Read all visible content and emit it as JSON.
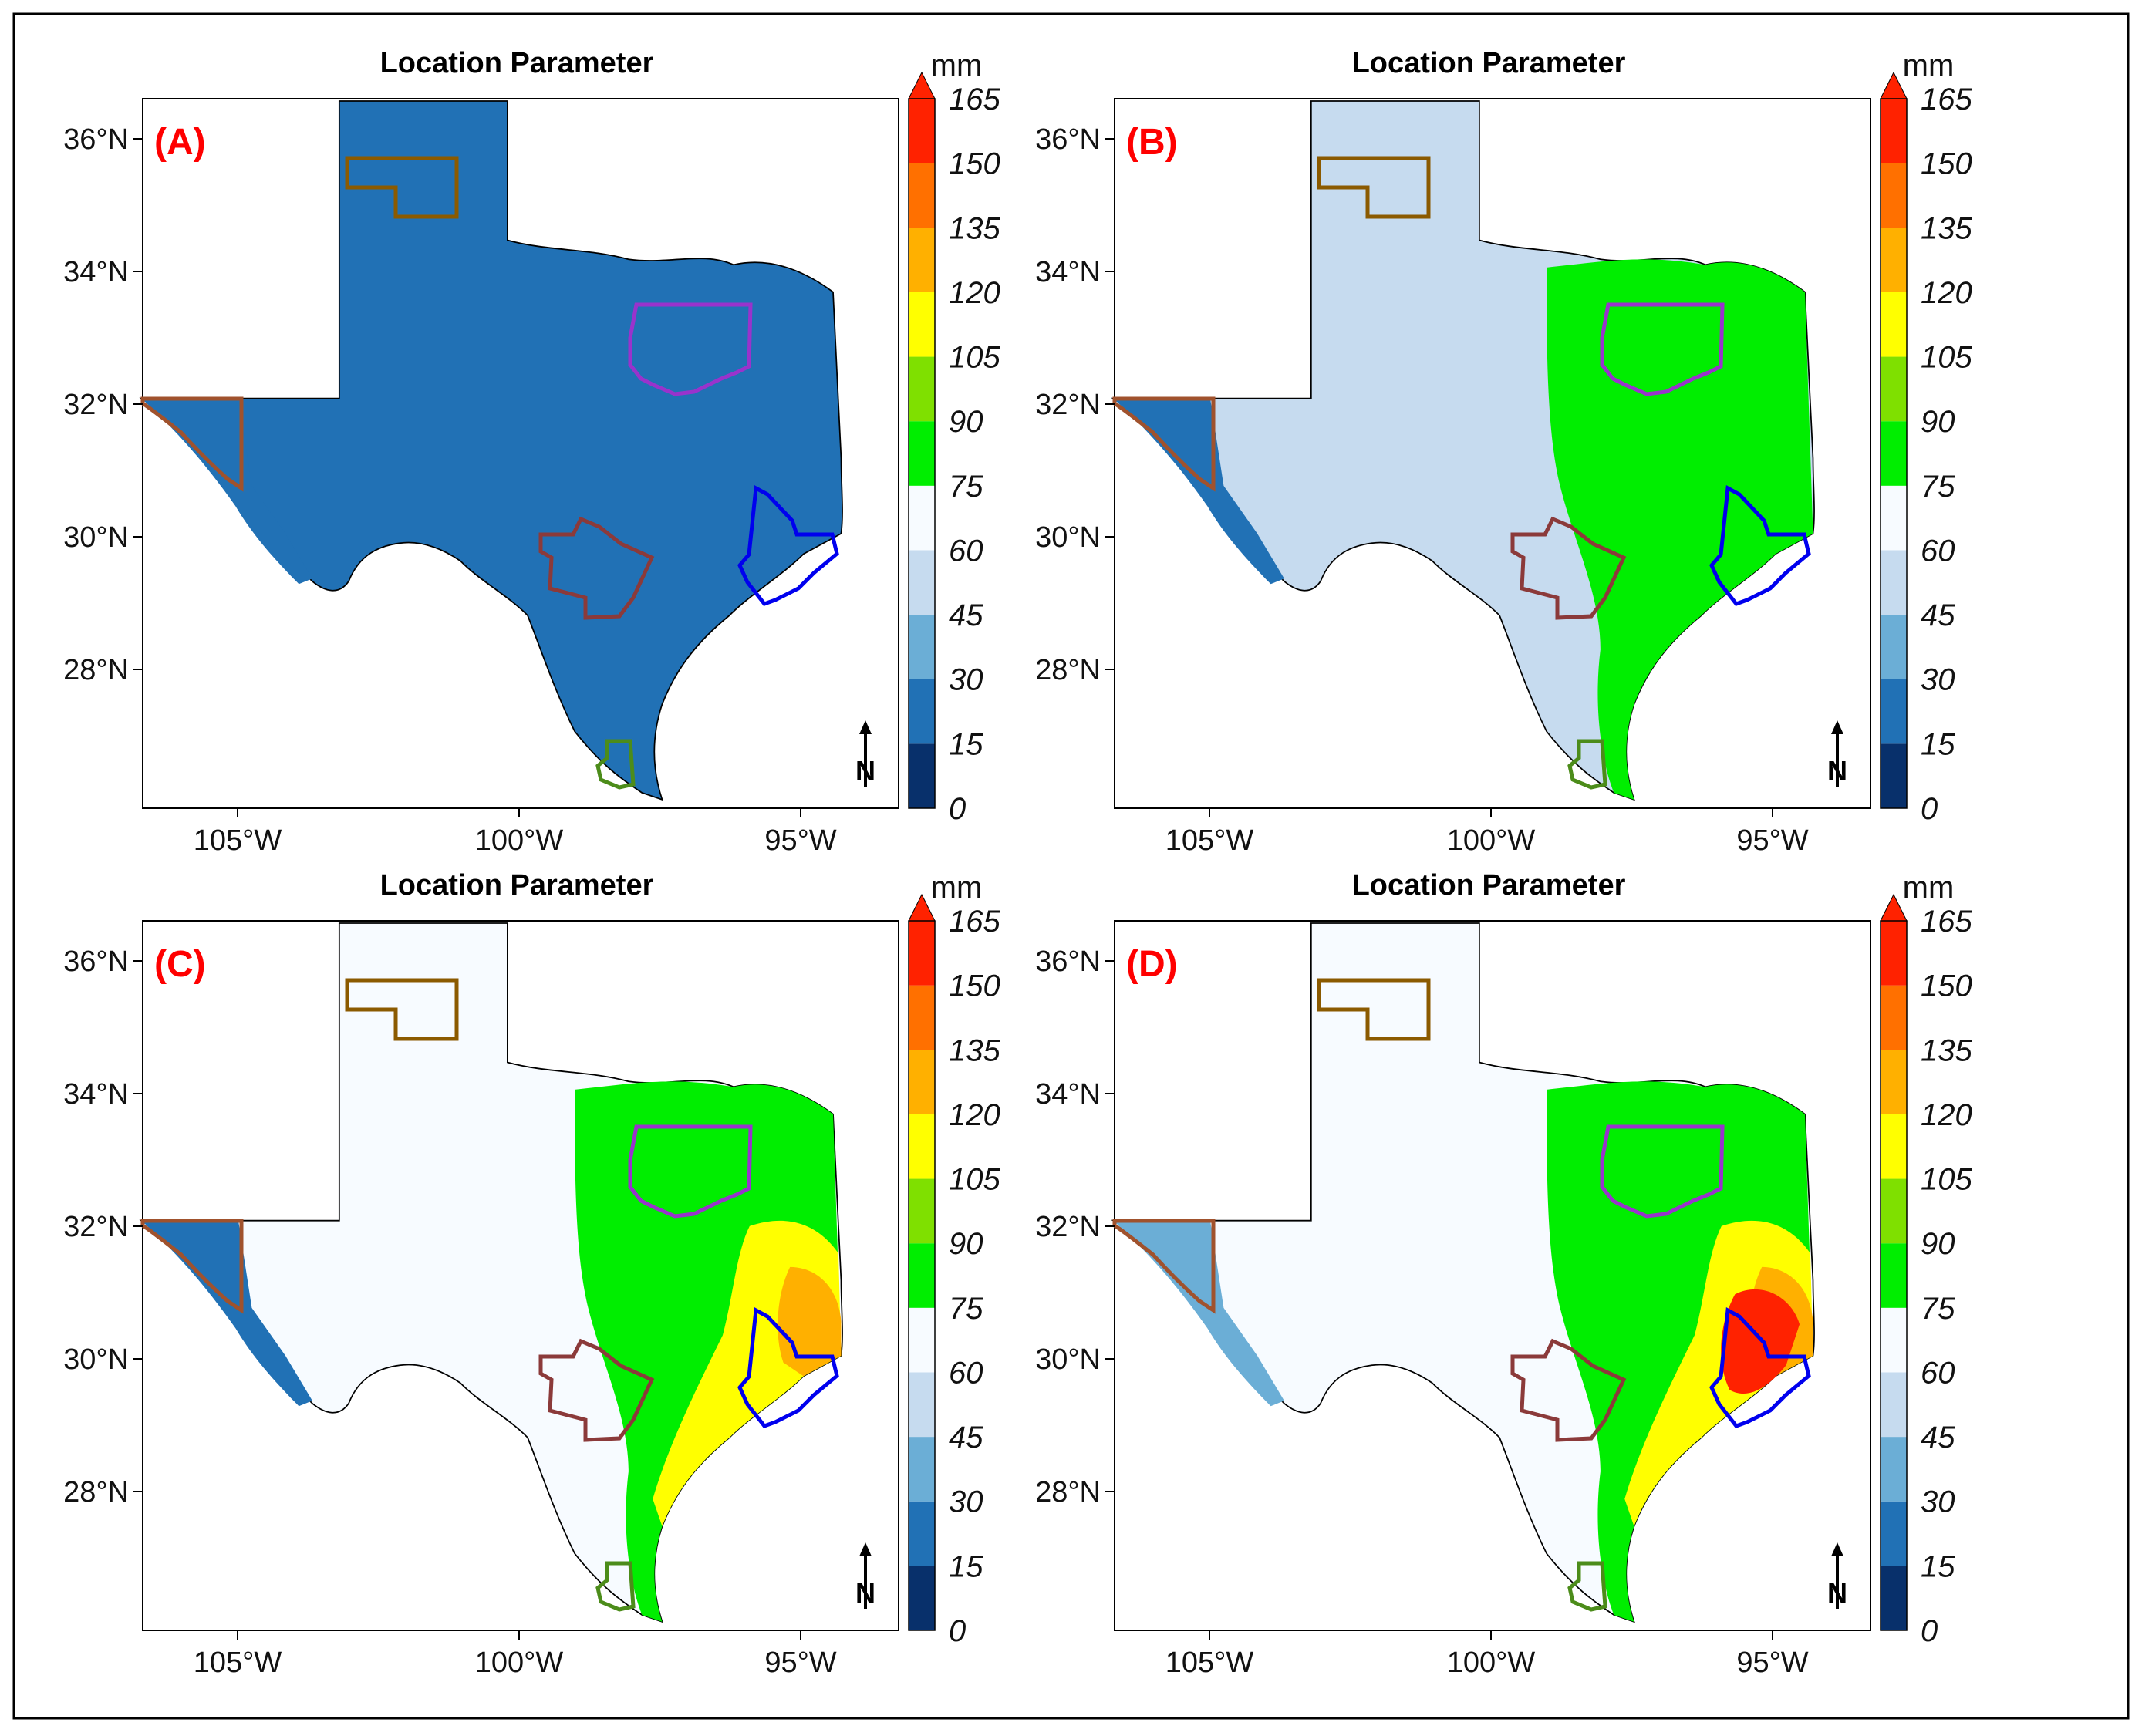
{
  "colorbar": {
    "unit": "mm",
    "levels": [
      "0",
      "15",
      "30",
      "45",
      "60",
      "75",
      "90",
      "105",
      "120",
      "135",
      "150",
      "165"
    ],
    "colors": [
      "#08306b",
      "#2171b5",
      "#6baed6",
      "#c6dbef",
      "#f7fbff",
      "#00ee00",
      "#7fe000",
      "#ffff00",
      "#ffb000",
      "#ff7000",
      "#ff2200"
    ]
  },
  "axes": {
    "lat_labels": [
      "36°N",
      "34°N",
      "32°N",
      "30°N",
      "28°N"
    ],
    "lon_labels": [
      "105°W",
      "100°W",
      "95°W"
    ]
  },
  "north_arrow": {
    "letter": "N"
  },
  "panels": [
    {
      "label": "(A)",
      "title": "Location Parameter",
      "fill_level": 1,
      "patch_level": 2,
      "patches": []
    },
    {
      "label": "(B)",
      "title": "Location Parameter",
      "fill_level": 3,
      "patch_level": 2,
      "patches": [
        "east-green"
      ]
    },
    {
      "label": "(C)",
      "title": "Location Parameter",
      "fill_level": 4,
      "patch_level": 2,
      "patches": [
        "east-green",
        "coast-hot"
      ]
    },
    {
      "label": "(D)",
      "title": "Location Parameter",
      "fill_level": 4,
      "patch_level": 3,
      "patches": [
        "east-green",
        "coast-hot",
        "houston-red"
      ]
    }
  ],
  "region_outlines": [
    {
      "name": "panhandle-region",
      "color": "#8B5A00"
    },
    {
      "name": "dfw-region",
      "color": "#9933cc"
    },
    {
      "name": "el-paso-region",
      "color": "#a0522d"
    },
    {
      "name": "san-antonio-region",
      "color": "#8b3a3a"
    },
    {
      "name": "houston-region",
      "color": "#0000ee"
    },
    {
      "name": "rio-grande-region",
      "color": "#4c8c1a"
    }
  ]
}
